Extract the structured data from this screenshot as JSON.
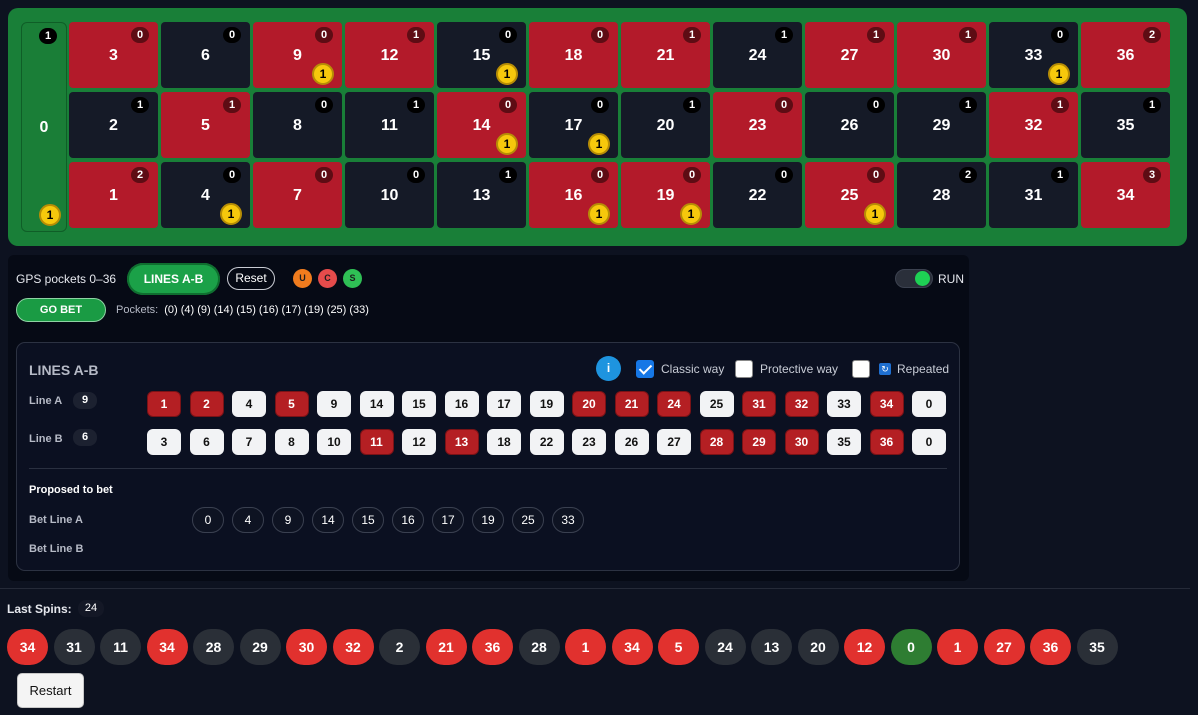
{
  "board": {
    "zero": {
      "number": "0",
      "count": "1",
      "coin": "1"
    },
    "cells": [
      {
        "number": "3",
        "color": "red",
        "count": "0",
        "coin": ""
      },
      {
        "number": "6",
        "color": "black",
        "count": "0",
        "coin": ""
      },
      {
        "number": "9",
        "color": "red",
        "count": "0",
        "coin": "1"
      },
      {
        "number": "12",
        "color": "red",
        "count": "1",
        "coin": ""
      },
      {
        "number": "15",
        "color": "black",
        "count": "0",
        "coin": "1"
      },
      {
        "number": "18",
        "color": "red",
        "count": "0",
        "coin": ""
      },
      {
        "number": "21",
        "color": "red",
        "count": "1",
        "coin": ""
      },
      {
        "number": "24",
        "color": "black",
        "count": "1",
        "coin": ""
      },
      {
        "number": "27",
        "color": "red",
        "count": "1",
        "coin": ""
      },
      {
        "number": "30",
        "color": "red",
        "count": "1",
        "coin": ""
      },
      {
        "number": "33",
        "color": "black",
        "count": "0",
        "coin": "1"
      },
      {
        "number": "36",
        "color": "red",
        "count": "2",
        "coin": ""
      },
      {
        "number": "2",
        "color": "black",
        "count": "1",
        "coin": ""
      },
      {
        "number": "5",
        "color": "red",
        "count": "1",
        "coin": ""
      },
      {
        "number": "8",
        "color": "black",
        "count": "0",
        "coin": ""
      },
      {
        "number": "11",
        "color": "black",
        "count": "1",
        "coin": ""
      },
      {
        "number": "14",
        "color": "red",
        "count": "0",
        "coin": "1"
      },
      {
        "number": "17",
        "color": "black",
        "count": "0",
        "coin": "1"
      },
      {
        "number": "20",
        "color": "black",
        "count": "1",
        "coin": ""
      },
      {
        "number": "23",
        "color": "red",
        "count": "0",
        "coin": ""
      },
      {
        "number": "26",
        "color": "black",
        "count": "0",
        "coin": ""
      },
      {
        "number": "29",
        "color": "black",
        "count": "1",
        "coin": ""
      },
      {
        "number": "32",
        "color": "red",
        "count": "1",
        "coin": ""
      },
      {
        "number": "35",
        "color": "black",
        "count": "1",
        "coin": ""
      },
      {
        "number": "1",
        "color": "red",
        "count": "2",
        "coin": ""
      },
      {
        "number": "4",
        "color": "black",
        "count": "0",
        "coin": "1"
      },
      {
        "number": "7",
        "color": "red",
        "count": "0",
        "coin": ""
      },
      {
        "number": "10",
        "color": "black",
        "count": "0",
        "coin": ""
      },
      {
        "number": "13",
        "color": "black",
        "count": "1",
        "coin": ""
      },
      {
        "number": "16",
        "color": "red",
        "count": "0",
        "coin": "1"
      },
      {
        "number": "19",
        "color": "red",
        "count": "0",
        "coin": "1"
      },
      {
        "number": "22",
        "color": "black",
        "count": "0",
        "coin": ""
      },
      {
        "number": "25",
        "color": "red",
        "count": "0",
        "coin": "1"
      },
      {
        "number": "28",
        "color": "black",
        "count": "2",
        "coin": ""
      },
      {
        "number": "31",
        "color": "black",
        "count": "1",
        "coin": ""
      },
      {
        "number": "34",
        "color": "red",
        "count": "3",
        "coin": ""
      }
    ]
  },
  "gps": {
    "title": "GPS pockets 0–36",
    "lines_button": "LINES A-B",
    "reset_button": "Reset",
    "status_dots": [
      {
        "letter": "U",
        "color": "#f07c1e"
      },
      {
        "letter": "C",
        "color": "#e54b4b"
      },
      {
        "letter": "S",
        "color": "#2fbf55"
      }
    ],
    "run_label": "RUN",
    "run_on": true,
    "go_bet_button": "GO BET",
    "pockets_label": "Pockets:",
    "pockets": "(0) (4) (9) (14) (15) (16) (17) (19) (25) (33)"
  },
  "lines": {
    "title": "LINES A-B",
    "info_icon": "i",
    "options": [
      {
        "label": "Classic way",
        "checked": true
      },
      {
        "label": "Protective way",
        "checked": false
      },
      {
        "label": "Repeated",
        "checked": false
      }
    ],
    "line_a": {
      "label": "Line A",
      "count": "9",
      "chips": [
        {
          "n": "1",
          "c": "red"
        },
        {
          "n": "2",
          "c": "red"
        },
        {
          "n": "4",
          "c": "white"
        },
        {
          "n": "5",
          "c": "red"
        },
        {
          "n": "9",
          "c": "white"
        },
        {
          "n": "14",
          "c": "white"
        },
        {
          "n": "15",
          "c": "white"
        },
        {
          "n": "16",
          "c": "white"
        },
        {
          "n": "17",
          "c": "white"
        },
        {
          "n": "19",
          "c": "white"
        },
        {
          "n": "20",
          "c": "red"
        },
        {
          "n": "21",
          "c": "red"
        },
        {
          "n": "24",
          "c": "red"
        },
        {
          "n": "25",
          "c": "white"
        },
        {
          "n": "31",
          "c": "red"
        },
        {
          "n": "32",
          "c": "red"
        },
        {
          "n": "33",
          "c": "white"
        },
        {
          "n": "34",
          "c": "red"
        },
        {
          "n": "0",
          "c": "white"
        }
      ]
    },
    "line_b": {
      "label": "Line B",
      "count": "6",
      "chips": [
        {
          "n": "3",
          "c": "white"
        },
        {
          "n": "6",
          "c": "white"
        },
        {
          "n": "7",
          "c": "white"
        },
        {
          "n": "8",
          "c": "white"
        },
        {
          "n": "10",
          "c": "white"
        },
        {
          "n": "11",
          "c": "red"
        },
        {
          "n": "12",
          "c": "white"
        },
        {
          "n": "13",
          "c": "red"
        },
        {
          "n": "18",
          "c": "white"
        },
        {
          "n": "22",
          "c": "white"
        },
        {
          "n": "23",
          "c": "white"
        },
        {
          "n": "26",
          "c": "white"
        },
        {
          "n": "27",
          "c": "white"
        },
        {
          "n": "28",
          "c": "red"
        },
        {
          "n": "29",
          "c": "red"
        },
        {
          "n": "30",
          "c": "red"
        },
        {
          "n": "35",
          "c": "white"
        },
        {
          "n": "36",
          "c": "red"
        },
        {
          "n": "0",
          "c": "white"
        }
      ]
    },
    "proposed_title": "Proposed to bet",
    "bet_line_a_label": "Bet Line A",
    "bet_line_a": [
      "0",
      "4",
      "9",
      "14",
      "15",
      "16",
      "17",
      "19",
      "25",
      "33"
    ],
    "bet_line_b_label": "Bet Line B",
    "bet_line_b": []
  },
  "last_spins": {
    "label": "Last Spins:",
    "count": "24",
    "spins": [
      {
        "n": "34",
        "c": "red"
      },
      {
        "n": "31",
        "c": "black"
      },
      {
        "n": "11",
        "c": "black"
      },
      {
        "n": "34",
        "c": "red"
      },
      {
        "n": "28",
        "c": "black"
      },
      {
        "n": "29",
        "c": "black"
      },
      {
        "n": "30",
        "c": "red"
      },
      {
        "n": "32",
        "c": "red"
      },
      {
        "n": "2",
        "c": "black"
      },
      {
        "n": "21",
        "c": "red"
      },
      {
        "n": "36",
        "c": "red"
      },
      {
        "n": "28",
        "c": "black"
      },
      {
        "n": "1",
        "c": "red"
      },
      {
        "n": "34",
        "c": "red"
      },
      {
        "n": "5",
        "c": "red"
      },
      {
        "n": "24",
        "c": "black"
      },
      {
        "n": "13",
        "c": "black"
      },
      {
        "n": "20",
        "c": "black"
      },
      {
        "n": "12",
        "c": "red"
      },
      {
        "n": "0",
        "c": "green"
      },
      {
        "n": "1",
        "c": "red"
      },
      {
        "n": "27",
        "c": "red"
      },
      {
        "n": "36",
        "c": "red"
      },
      {
        "n": "35",
        "c": "black"
      }
    ]
  },
  "restart_button": "Restart"
}
